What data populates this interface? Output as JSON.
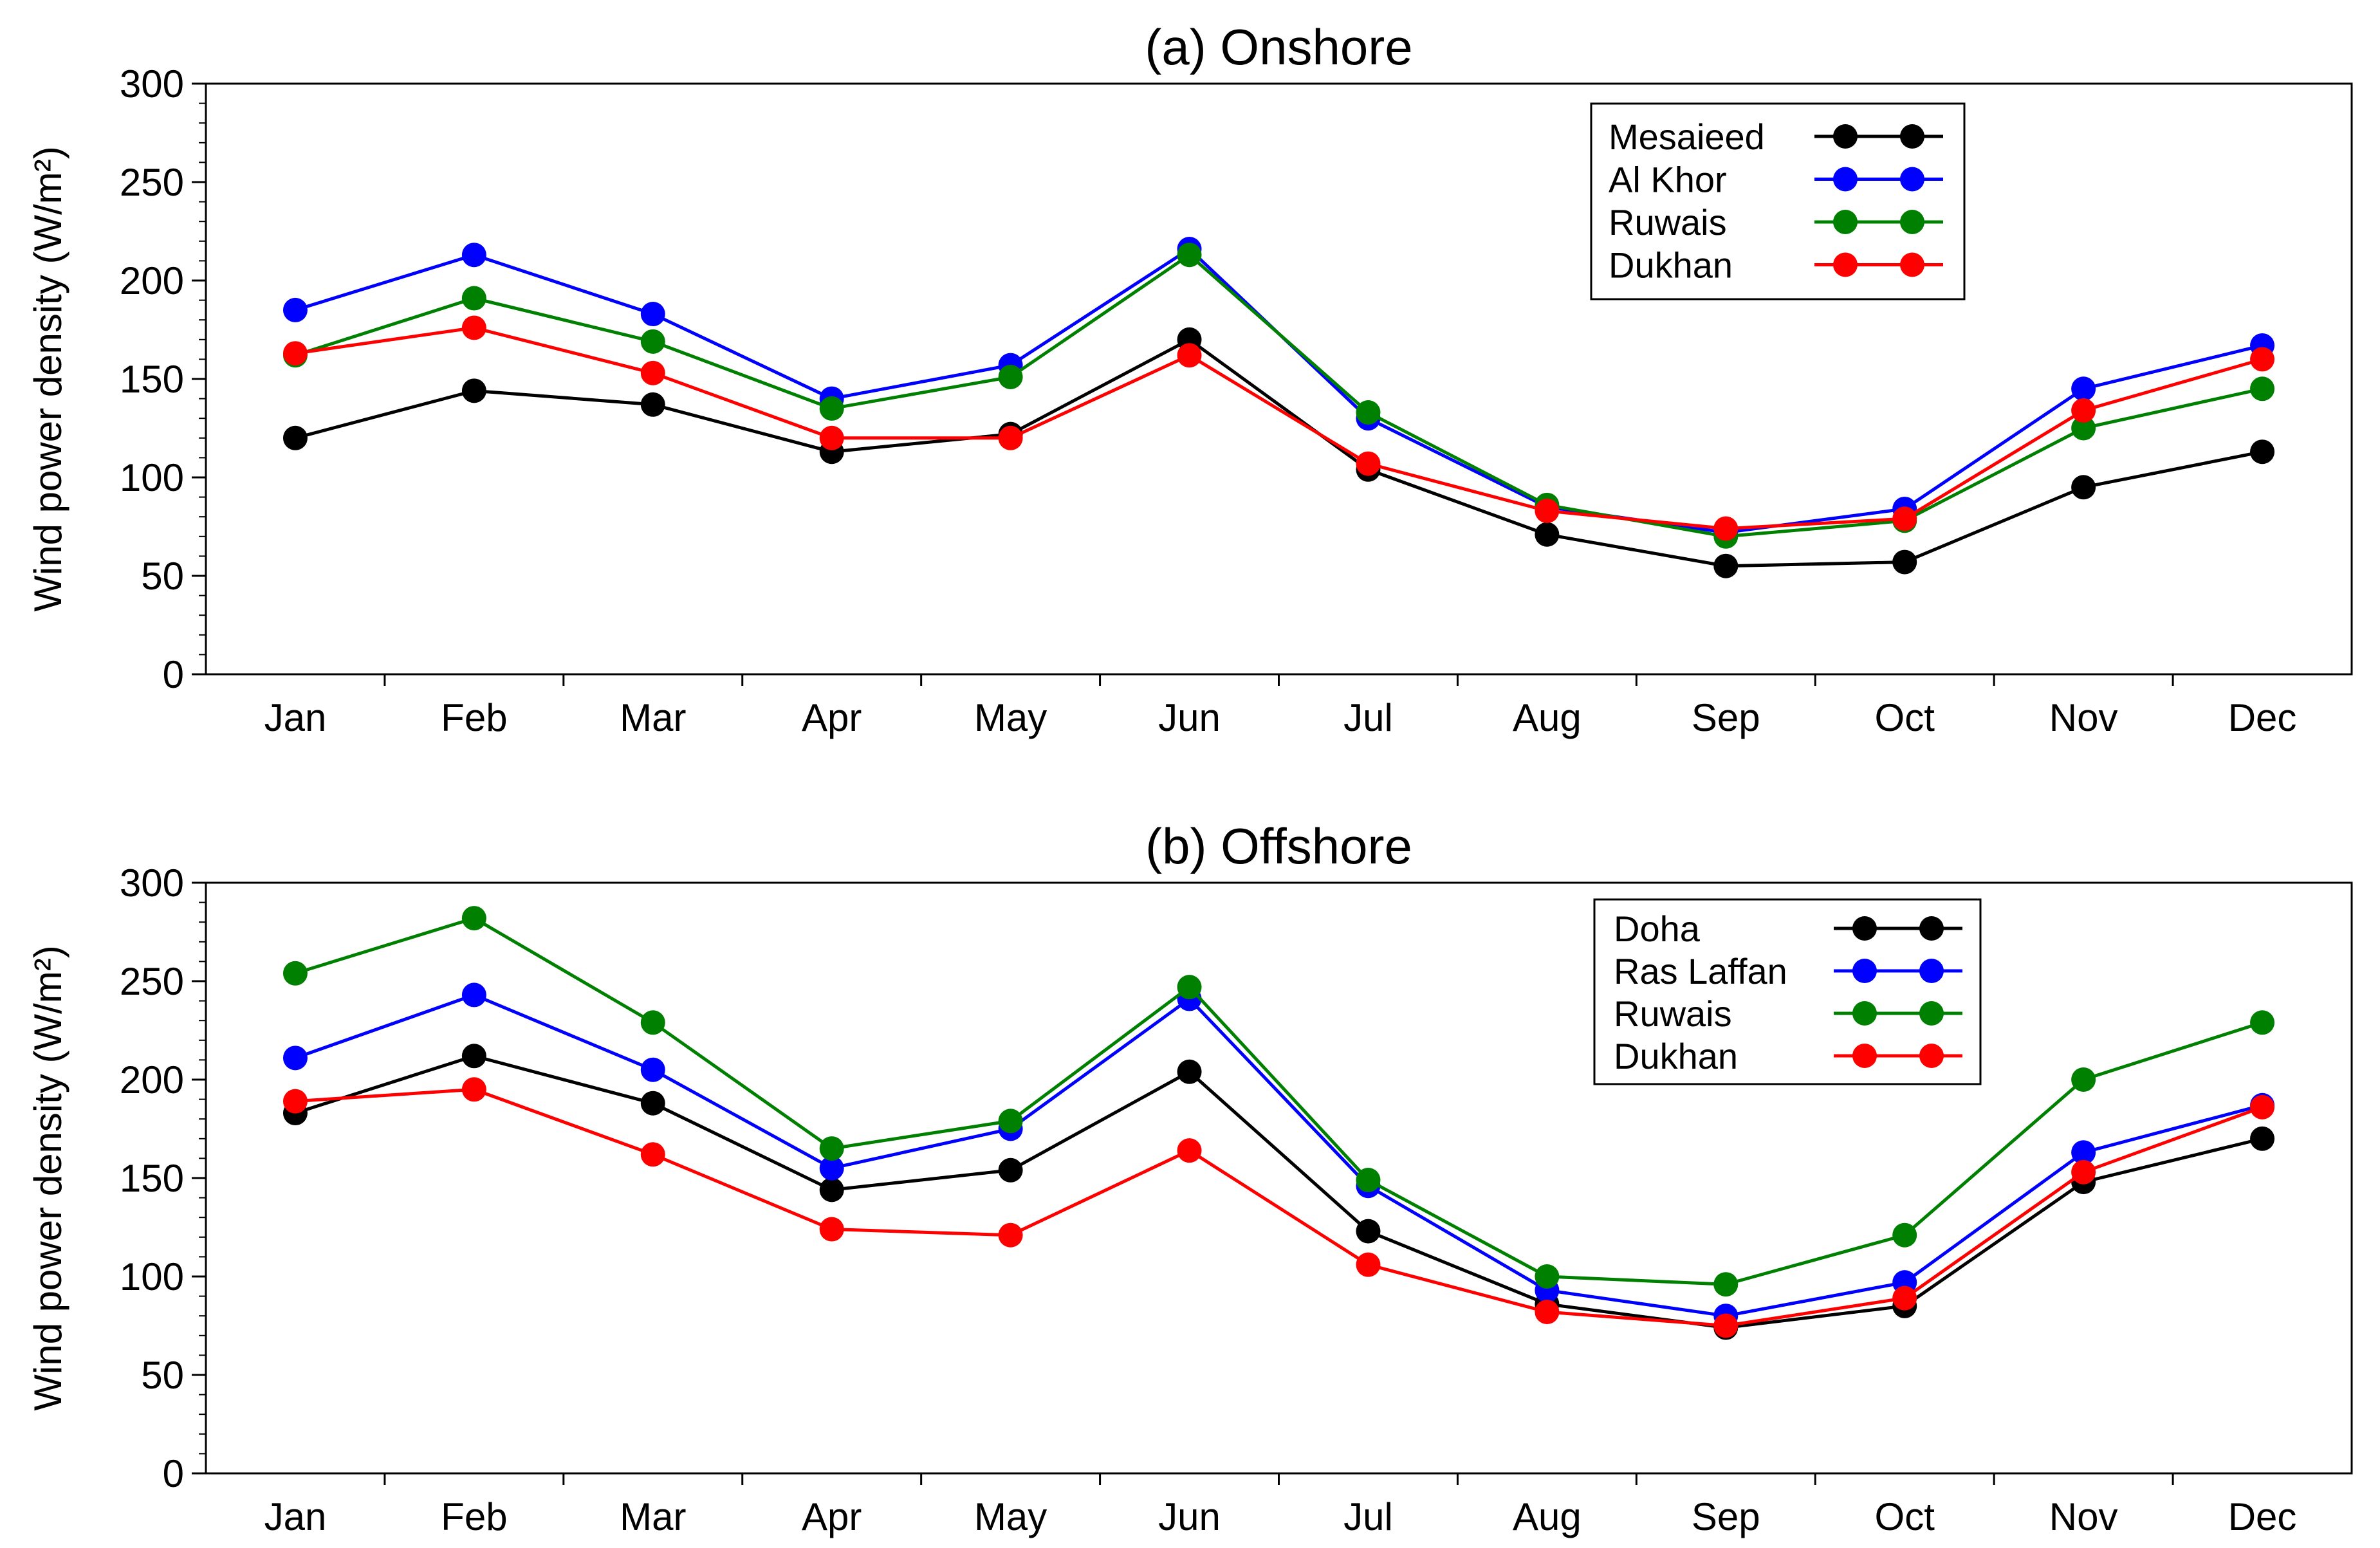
{
  "chart_data": [
    {
      "type": "line",
      "title": "(a) Onshore",
      "xlabel": "",
      "ylabel": "Wind power density (W/m²)",
      "ylim": [
        0,
        300
      ],
      "yticks": [
        0,
        50,
        100,
        150,
        200,
        250,
        300
      ],
      "grid": false,
      "legend_position": "top-right",
      "categories": [
        "Jan",
        "Feb",
        "Mar",
        "Apr",
        "May",
        "Jun",
        "Jul",
        "Aug",
        "Sep",
        "Oct",
        "Nov",
        "Dec"
      ],
      "series": [
        {
          "name": "Mesaieed",
          "color": "#000000",
          "values": [
            120,
            144,
            137,
            113,
            122,
            170,
            104,
            71,
            55,
            57,
            95,
            113
          ]
        },
        {
          "name": "Al Khor",
          "color": "#0000ff",
          "values": [
            185,
            213,
            183,
            140,
            157,
            216,
            130,
            85,
            72,
            84,
            145,
            167
          ]
        },
        {
          "name": "Ruwais",
          "color": "#008000",
          "values": [
            162,
            191,
            169,
            135,
            151,
            213,
            133,
            86,
            70,
            78,
            125,
            145
          ]
        },
        {
          "name": "Dukhan",
          "color": "#ff0000",
          "values": [
            163,
            176,
            153,
            120,
            120,
            162,
            107,
            83,
            74,
            79,
            134,
            160
          ]
        }
      ]
    },
    {
      "type": "line",
      "title": "(b) Offshore",
      "xlabel": "",
      "ylabel": "Wind power density (W/m²)",
      "ylim": [
        0,
        300
      ],
      "yticks": [
        0,
        50,
        100,
        150,
        200,
        250,
        300
      ],
      "grid": false,
      "legend_position": "top-right",
      "categories": [
        "Jan",
        "Feb",
        "Mar",
        "Apr",
        "May",
        "Jun",
        "Jul",
        "Aug",
        "Sep",
        "Oct",
        "Nov",
        "Dec"
      ],
      "series": [
        {
          "name": "Doha",
          "color": "#000000",
          "values": [
            183,
            212,
            188,
            144,
            154,
            204,
            123,
            86,
            74,
            85,
            148,
            170
          ]
        },
        {
          "name": "Ras Laffan",
          "color": "#0000ff",
          "values": [
            211,
            243,
            205,
            155,
            175,
            241,
            146,
            93,
            80,
            97,
            163,
            187
          ]
        },
        {
          "name": "Ruwais",
          "color": "#008000",
          "values": [
            254,
            282,
            229,
            165,
            179,
            247,
            149,
            100,
            96,
            121,
            200,
            229
          ]
        },
        {
          "name": "Dukhan",
          "color": "#ff0000",
          "values": [
            189,
            195,
            162,
            124,
            121,
            164,
            106,
            82,
            75,
            89,
            153,
            186
          ]
        }
      ]
    }
  ]
}
